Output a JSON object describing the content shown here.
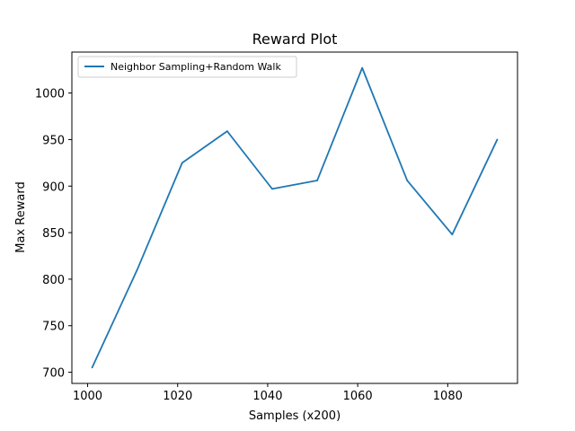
{
  "chart_data": {
    "type": "line",
    "title": "Reward Plot",
    "xlabel": "Samples (x200)",
    "ylabel": "Max Reward",
    "xlim": [
      996.5,
      1095.5
    ],
    "ylim": [
      688,
      1044
    ],
    "xticks": [
      1000,
      1020,
      1040,
      1060,
      1080
    ],
    "yticks": [
      700,
      750,
      800,
      850,
      900,
      950,
      1000
    ],
    "grid": false,
    "legend_position": "top-left",
    "series": [
      {
        "name": "Neighbor Sampling+Random Walk",
        "color": "#1f77b4",
        "x": [
          1001,
          1011,
          1021,
          1031,
          1041,
          1051,
          1061,
          1071,
          1081,
          1091
        ],
        "y": [
          705,
          810,
          925,
          959,
          897,
          906,
          1027,
          906,
          848,
          950
        ]
      }
    ]
  }
}
